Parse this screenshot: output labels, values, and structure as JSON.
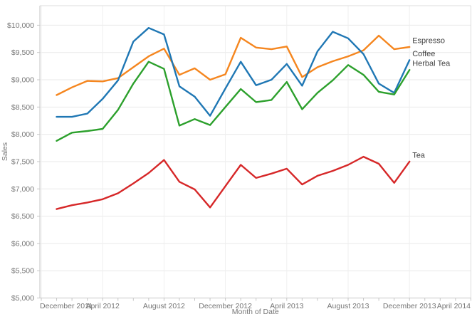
{
  "chart_data": {
    "type": "line",
    "title": "",
    "xlabel": "Month of Date",
    "ylabel": "Sales",
    "x": [
      "Jan 2012",
      "Feb 2012",
      "Mar 2012",
      "Apr 2012",
      "May 2012",
      "Jun 2012",
      "Jul 2012",
      "Aug 2012",
      "Sep 2012",
      "Oct 2012",
      "Nov 2012",
      "Dec 2012",
      "Jan 2013",
      "Feb 2013",
      "Mar 2013",
      "Apr 2013",
      "May 2013",
      "Jun 2013",
      "Jul 2013",
      "Aug 2013",
      "Sep 2013",
      "Oct 2013",
      "Nov 2013",
      "Dec 2013"
    ],
    "x_axis_tick_labels": [
      "December 2011",
      "April 2012",
      "August 2012",
      "December 2012",
      "April 2013",
      "August 2013",
      "December 2013",
      "April 2014"
    ],
    "y_tick_labels": [
      "$5,000",
      "$5,500",
      "$6,000",
      "$6,500",
      "$7,000",
      "$7,500",
      "$8,000",
      "$8,500",
      "$9,000",
      "$9,500",
      "$10,000"
    ],
    "ylim": [
      5000,
      10000
    ],
    "y_tick_step": 500,
    "grid": "on",
    "legend_position": "line-end-labels",
    "series": [
      {
        "name": "Espresso",
        "color": "#f5861f",
        "values": [
          8720,
          8860,
          8980,
          8970,
          9030,
          9230,
          9430,
          9570,
          9090,
          9210,
          9000,
          9100,
          9770,
          9590,
          9560,
          9610,
          9050,
          9230,
          9340,
          9430,
          9540,
          9810,
          9560,
          9600
        ]
      },
      {
        "name": "Coffee",
        "color": "#1f77b4",
        "values": [
          8320,
          8320,
          8380,
          8650,
          8990,
          9700,
          9950,
          9830,
          8880,
          8690,
          8340,
          8840,
          9330,
          8900,
          9000,
          9290,
          8890,
          9520,
          9880,
          9760,
          9470,
          8930,
          8760,
          9360
        ]
      },
      {
        "name": "Herbal Tea",
        "color": "#2ca02c",
        "values": [
          7880,
          8030,
          8060,
          8100,
          8450,
          8930,
          9330,
          9200,
          8160,
          8280,
          8170,
          8500,
          8830,
          8590,
          8630,
          8960,
          8460,
          8760,
          8990,
          9270,
          9090,
          8780,
          8730,
          9180
        ]
      },
      {
        "name": "Tea",
        "color": "#d62728",
        "values": [
          6630,
          6700,
          6750,
          6810,
          6920,
          7100,
          7290,
          7530,
          7130,
          6990,
          6660,
          7050,
          7440,
          7200,
          7280,
          7370,
          7080,
          7240,
          7330,
          7440,
          7590,
          7460,
          7110,
          7500
        ]
      }
    ]
  }
}
